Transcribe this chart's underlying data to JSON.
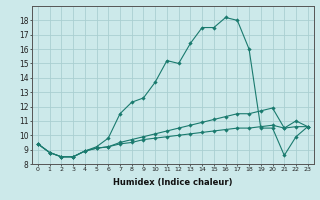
{
  "bg_color": "#cce9ea",
  "grid_color": "#aacfd1",
  "line_color": "#1a7a6e",
  "xlabel": "Humidex (Indice chaleur)",
  "xlim": [
    -0.5,
    23.5
  ],
  "ylim": [
    8,
    19
  ],
  "xticks": [
    0,
    1,
    2,
    3,
    4,
    5,
    6,
    7,
    8,
    9,
    10,
    11,
    12,
    13,
    14,
    15,
    16,
    17,
    18,
    19,
    20,
    21,
    22,
    23
  ],
  "yticks": [
    8,
    9,
    10,
    11,
    12,
    13,
    14,
    15,
    16,
    17,
    18
  ],
  "line1_x": [
    0,
    1,
    2,
    3,
    4,
    5,
    6,
    7,
    8,
    9,
    10,
    11,
    12,
    13,
    14,
    15,
    16,
    17,
    18,
    19,
    20,
    21,
    22,
    23
  ],
  "line1_y": [
    9.4,
    8.8,
    8.5,
    8.5,
    8.9,
    9.1,
    9.2,
    9.4,
    9.5,
    9.7,
    9.8,
    9.9,
    10.0,
    10.1,
    10.2,
    10.3,
    10.4,
    10.5,
    10.5,
    10.6,
    10.7,
    10.5,
    10.6,
    10.6
  ],
  "line2_x": [
    0,
    1,
    2,
    3,
    4,
    5,
    6,
    7,
    8,
    9,
    10,
    11,
    12,
    13,
    14,
    15,
    16,
    17,
    18,
    19,
    20,
    21,
    22,
    23
  ],
  "line2_y": [
    9.4,
    8.8,
    8.5,
    8.5,
    8.9,
    9.1,
    9.2,
    9.5,
    9.7,
    9.9,
    10.1,
    10.3,
    10.5,
    10.7,
    10.9,
    11.1,
    11.3,
    11.5,
    11.5,
    11.7,
    11.9,
    10.5,
    11.0,
    10.6
  ],
  "line3_x": [
    0,
    1,
    2,
    3,
    4,
    5,
    6,
    7,
    8,
    9,
    10,
    11,
    12,
    13,
    14,
    15,
    16,
    17,
    18,
    19,
    20,
    21,
    22,
    23
  ],
  "line3_y": [
    9.4,
    8.8,
    8.5,
    8.5,
    8.9,
    9.2,
    9.8,
    11.5,
    12.3,
    12.6,
    13.7,
    15.2,
    15.0,
    16.4,
    17.5,
    17.5,
    18.2,
    18.0,
    16.0,
    10.5,
    10.5,
    8.6,
    9.9,
    10.6
  ]
}
